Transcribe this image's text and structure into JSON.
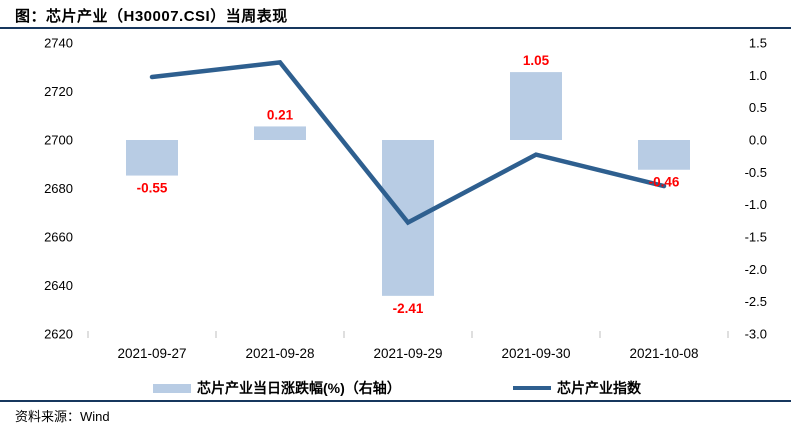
{
  "title": "图：芯片产业（H30007.CSI）当周表现",
  "source": "资料来源：Wind",
  "legend": {
    "bar_label": "芯片产业当日涨跌幅(%)（右轴）",
    "line_label": "芯片产业指数"
  },
  "colors": {
    "bar_fill": "#B8CCE4",
    "line_stroke": "#2E5F8F",
    "data_label": "#FF0000",
    "rule": "#17375E",
    "axis_text": "#000000",
    "tick_mark": "#BFBFBF"
  },
  "chart_data": {
    "type": "bar",
    "subtype": "bar+line combo, dual axis",
    "categories": [
      "2021-09-27",
      "2021-09-28",
      "2021-09-29",
      "2021-09-30",
      "2021-10-08"
    ],
    "series": [
      {
        "name": "芯片产业当日涨跌幅(%)（右轴）",
        "type": "bar",
        "axis": "right",
        "values": [
          -0.55,
          0.21,
          -2.41,
          1.05,
          -0.46
        ],
        "labels": [
          "-0.55",
          "0.21",
          "-2.41",
          "1.05",
          "-0.46"
        ]
      },
      {
        "name": "芯片产业指数",
        "type": "line",
        "axis": "left",
        "values": [
          2726,
          2732,
          2666,
          2694,
          2681
        ]
      }
    ],
    "left_axis": {
      "min": 2620,
      "max": 2740,
      "step": 20,
      "ticks": [
        "2740",
        "2720",
        "2700",
        "2680",
        "2660",
        "2640",
        "2620"
      ]
    },
    "right_axis": {
      "min": -3.0,
      "max": 1.5,
      "step": 0.5,
      "ticks": [
        "1.5",
        "1.0",
        "0.5",
        "0.0",
        "-0.5",
        "-1.0",
        "-1.5",
        "-2.0",
        "-2.5",
        "-3.0"
      ]
    },
    "grid": false,
    "legend_position": "bottom"
  }
}
